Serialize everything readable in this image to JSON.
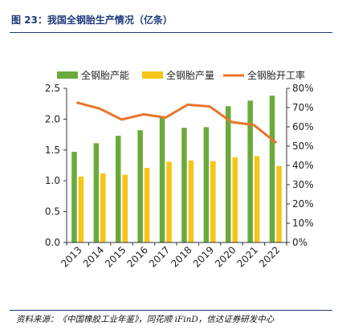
{
  "figure": {
    "title": "图 23：我国全钢胎生产情况（亿条）",
    "source": "资料来源：《中国橡胶工业年鉴》，同花顺 iFinD，信达证券研发中心"
  },
  "chart_data": {
    "type": "bar",
    "categories": [
      "2013",
      "2014",
      "2015",
      "2016",
      "2017",
      "2018",
      "2019",
      "2020",
      "2021",
      "2022"
    ],
    "series": [
      {
        "name": "全钢胎产能",
        "type": "bar",
        "axis": "left",
        "color": "#6aaa3a",
        "values": [
          1.47,
          1.61,
          1.73,
          1.82,
          2.04,
          1.86,
          1.87,
          2.21,
          2.3,
          2.38
        ]
      },
      {
        "name": "全钢胎产量",
        "type": "bar",
        "axis": "left",
        "color": "#f5c518",
        "values": [
          1.07,
          1.12,
          1.1,
          1.21,
          1.31,
          1.33,
          1.32,
          1.38,
          1.4,
          1.24
        ]
      },
      {
        "name": "全钢胎开工率",
        "type": "line",
        "axis": "right",
        "color": "#e8752a",
        "values": [
          72.5,
          69.5,
          63.8,
          66.5,
          64.8,
          71.5,
          70.6,
          62.5,
          61.0,
          52.0
        ]
      }
    ],
    "y_left": {
      "min": 0,
      "max": 2.5,
      "ticks": [
        "0.0",
        "0.5",
        "1.0",
        "1.5",
        "2.0",
        "2.5"
      ]
    },
    "y_right": {
      "min": 0,
      "max": 80,
      "ticks": [
        "0%",
        "10%",
        "20%",
        "30%",
        "40%",
        "50%",
        "60%",
        "70%",
        "80%"
      ]
    },
    "grid": false,
    "legend": "top"
  }
}
